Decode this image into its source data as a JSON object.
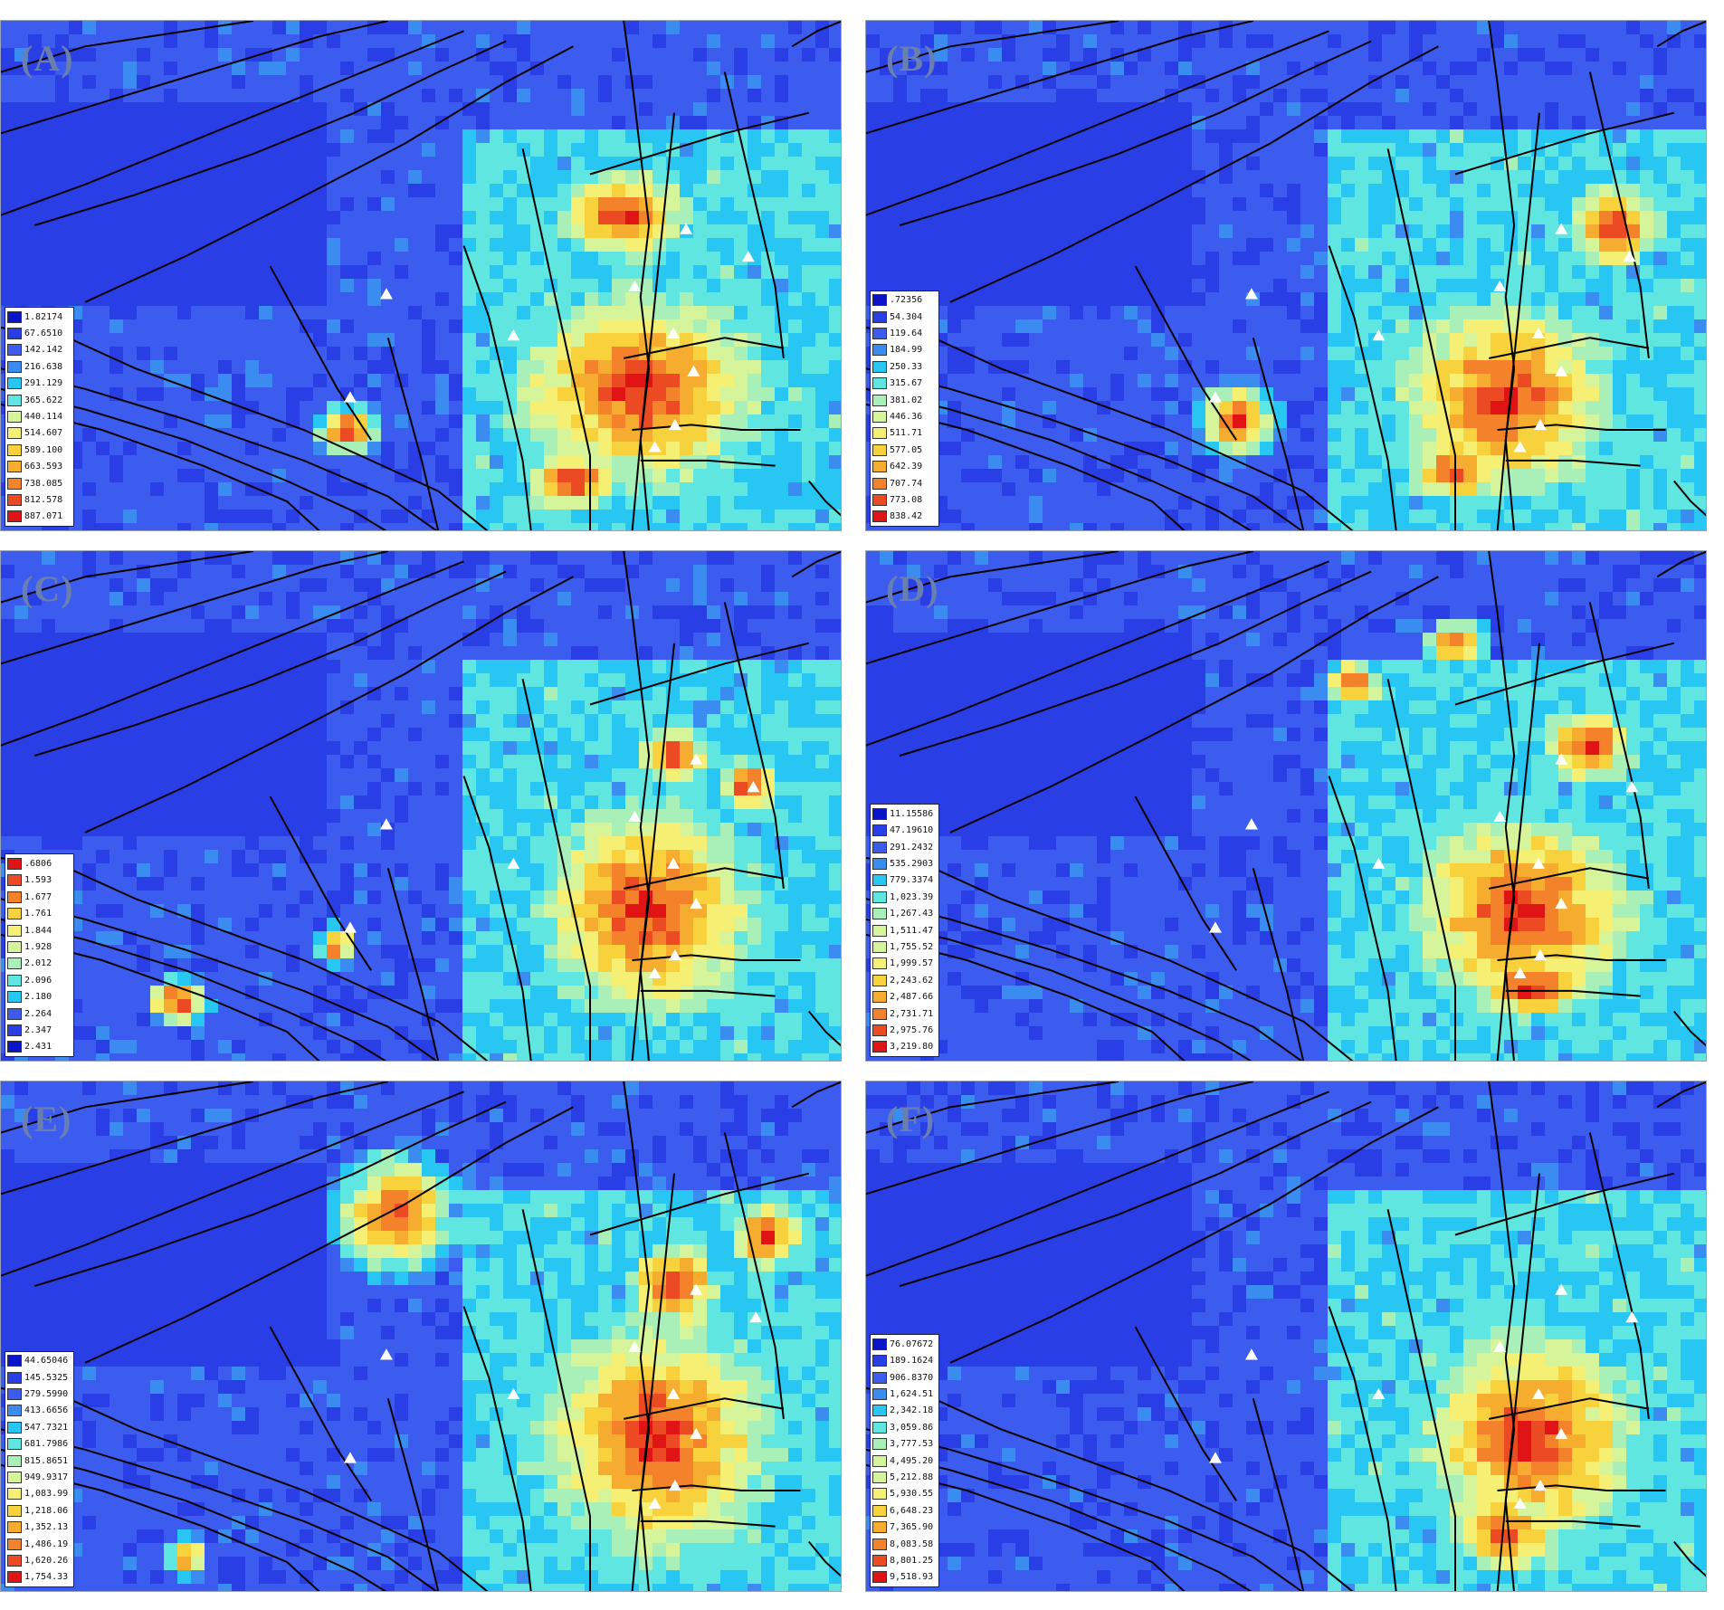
{
  "colors": {
    "background_blue": "#1f3fe0",
    "ramp": [
      "#0a14c8",
      "#2a3ee6",
      "#3c5cf0",
      "#3a8cf0",
      "#28c6f2",
      "#5fe6e0",
      "#a8f0b8",
      "#d6f59a",
      "#f5f074",
      "#f8d23c",
      "#f6ac2e",
      "#f4822a",
      "#ec4a22",
      "#e01414"
    ],
    "fault_line": "#000000",
    "marker": "#ffffff"
  },
  "panels": [
    {
      "id": "A",
      "label": "(A)",
      "hotspots": [
        [
          0.76,
          0.72,
          0.14,
          0.18
        ],
        [
          0.74,
          0.38,
          0.07,
          0.08
        ],
        [
          0.68,
          0.9,
          0.05,
          0.06
        ],
        [
          0.41,
          0.8,
          0.03,
          0.04
        ]
      ],
      "legend": [
        "1.82174",
        "67.6510",
        "142.142",
        "216.638",
        "291.129",
        "365.622",
        "440.114",
        "514.607",
        "589.100",
        "663.593",
        "738.085",
        "812.578",
        "887.071"
      ],
      "markers": [
        [
          0.458,
          0.535
        ],
        [
          0.609,
          0.616
        ],
        [
          0.415,
          0.737
        ],
        [
          0.753,
          0.52
        ],
        [
          0.814,
          0.408
        ],
        [
          0.888,
          0.462
        ],
        [
          0.799,
          0.612
        ],
        [
          0.823,
          0.686
        ],
        [
          0.801,
          0.791
        ],
        [
          0.777,
          0.834
        ]
      ]
    },
    {
      "id": "B",
      "label": "(B)",
      "hotspots": [
        [
          0.76,
          0.74,
          0.12,
          0.18
        ],
        [
          0.89,
          0.4,
          0.05,
          0.08
        ],
        [
          0.44,
          0.78,
          0.04,
          0.06
        ],
        [
          0.7,
          0.88,
          0.05,
          0.06
        ]
      ],
      "legend": [
        ".72356",
        "54.304",
        "119.64",
        "184.99",
        "250.33",
        "315.67",
        "381.02",
        "446.36",
        "511.71",
        "577.05",
        "642.39",
        "707.74",
        "773.08",
        "838.42"
      ],
      "markers": [
        [
          0.458,
          0.535
        ],
        [
          0.609,
          0.616
        ],
        [
          0.415,
          0.737
        ],
        [
          0.753,
          0.52
        ],
        [
          0.826,
          0.408
        ],
        [
          0.907,
          0.462
        ],
        [
          0.799,
          0.612
        ],
        [
          0.826,
          0.686
        ],
        [
          0.801,
          0.791
        ],
        [
          0.777,
          0.834
        ]
      ]
    },
    {
      "id": "C",
      "label": "(C)",
      "hotspots": [
        [
          0.77,
          0.7,
          0.12,
          0.2
        ],
        [
          0.8,
          0.4,
          0.04,
          0.05
        ],
        [
          0.89,
          0.46,
          0.03,
          0.05
        ],
        [
          0.21,
          0.88,
          0.03,
          0.04
        ],
        [
          0.4,
          0.77,
          0.02,
          0.03
        ]
      ],
      "legend": [
        ".6806",
        "1.593",
        "1.677",
        "1.761",
        "1.844",
        "1.928",
        "2.012",
        "2.096",
        "2.180",
        "2.264",
        "2.347",
        "2.431"
      ],
      "markers": [
        [
          0.458,
          0.535
        ],
        [
          0.609,
          0.612
        ],
        [
          0.415,
          0.737
        ],
        [
          0.753,
          0.52
        ],
        [
          0.826,
          0.408
        ],
        [
          0.894,
          0.462
        ],
        [
          0.799,
          0.612
        ],
        [
          0.826,
          0.69
        ],
        [
          0.801,
          0.791
        ],
        [
          0.777,
          0.826
        ]
      ]
    },
    {
      "id": "D",
      "label": "(D)",
      "hotspots": [
        [
          0.78,
          0.7,
          0.13,
          0.18
        ],
        [
          0.79,
          0.85,
          0.07,
          0.06
        ],
        [
          0.7,
          0.18,
          0.03,
          0.04
        ],
        [
          0.86,
          0.38,
          0.05,
          0.07
        ],
        [
          0.58,
          0.26,
          0.03,
          0.04
        ]
      ],
      "legend": [
        "11.15586",
        "47.19610",
        "291.2432",
        "535.2903",
        "779.3374",
        "1,023.39",
        "1,267.43",
        "1,511.47",
        "1,755.52",
        "1,999.57",
        "2,243.62",
        "2,487.66",
        "2,731.71",
        "2,975.76",
        "3,219.80"
      ],
      "markers": [
        [
          0.458,
          0.535
        ],
        [
          0.609,
          0.612
        ],
        [
          0.415,
          0.737
        ],
        [
          0.753,
          0.52
        ],
        [
          0.826,
          0.408
        ],
        [
          0.91,
          0.462
        ],
        [
          0.799,
          0.612
        ],
        [
          0.826,
          0.69
        ],
        [
          0.801,
          0.791
        ],
        [
          0.777,
          0.826
        ]
      ]
    },
    {
      "id": "E",
      "label": "(E)",
      "hotspots": [
        [
          0.78,
          0.7,
          0.13,
          0.22
        ],
        [
          0.8,
          0.4,
          0.05,
          0.08
        ],
        [
          0.47,
          0.26,
          0.06,
          0.1
        ],
        [
          0.91,
          0.3,
          0.04,
          0.06
        ],
        [
          0.22,
          0.93,
          0.02,
          0.03
        ]
      ],
      "legend": [
        "44.65046",
        "145.5325",
        "279.5990",
        "413.6656",
        "547.7321",
        "681.7986",
        "815.8651",
        "949.9317",
        "1,083.99",
        "1,218.06",
        "1,352.13",
        "1,486.19",
        "1,620.26",
        "1,754.33"
      ],
      "markers": [
        [
          0.458,
          0.535
        ],
        [
          0.609,
          0.612
        ],
        [
          0.415,
          0.737
        ],
        [
          0.753,
          0.52
        ],
        [
          0.826,
          0.408
        ],
        [
          0.897,
          0.462
        ],
        [
          0.799,
          0.612
        ],
        [
          0.826,
          0.69
        ],
        [
          0.801,
          0.791
        ],
        [
          0.777,
          0.826
        ]
      ]
    },
    {
      "id": "F",
      "label": "(F)",
      "hotspots": [
        [
          0.79,
          0.7,
          0.12,
          0.2
        ],
        [
          0.76,
          0.88,
          0.06,
          0.07
        ]
      ],
      "legend": [
        "76.07672",
        "189.1624",
        "906.8370",
        "1,624.51",
        "2,342.18",
        "3,059.86",
        "3,777.53",
        "4,495.20",
        "5,212.88",
        "5,930.55",
        "6,648.23",
        "7,365.90",
        "8,083.58",
        "8,801.25",
        "9,518.93"
      ],
      "markers": [
        [
          0.458,
          0.535
        ],
        [
          0.609,
          0.612
        ],
        [
          0.415,
          0.737
        ],
        [
          0.753,
          0.52
        ],
        [
          0.826,
          0.408
        ],
        [
          0.91,
          0.462
        ],
        [
          0.799,
          0.612
        ],
        [
          0.826,
          0.69
        ],
        [
          0.801,
          0.791
        ],
        [
          0.777,
          0.826
        ]
      ]
    }
  ]
}
